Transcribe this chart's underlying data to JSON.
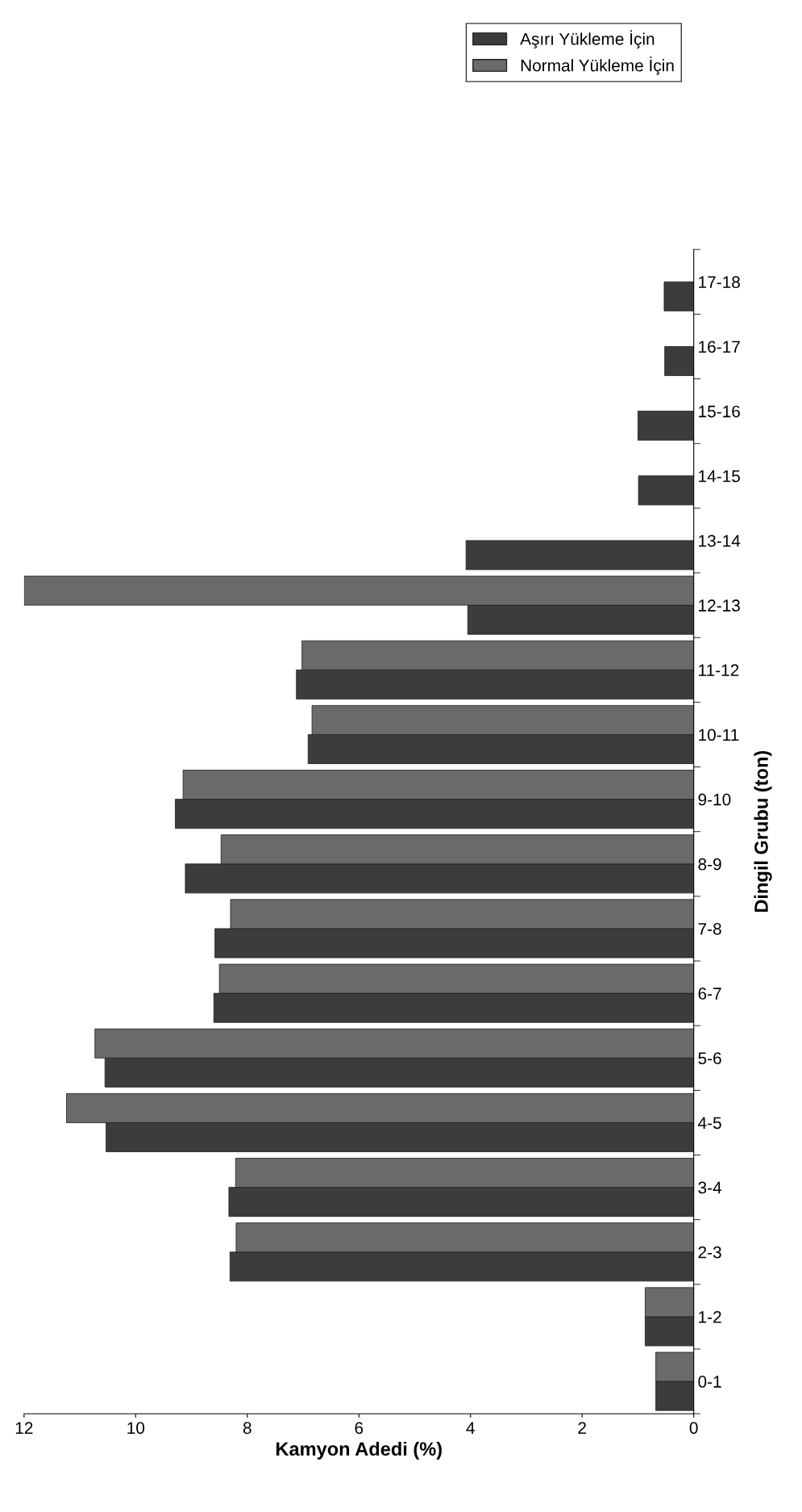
{
  "chart_data": {
    "type": "bar",
    "orientation": "horizontal",
    "xlabel": "Kamyon Adedi (%)",
    "ylabel": "Dingil Grubu (ton)",
    "categories": [
      "17-18",
      "16-17",
      "15-16",
      "14-15",
      "13-14",
      "12-13",
      "11-12",
      "10-11",
      "9-10",
      "8-9",
      "7-8",
      "6-7",
      "5-6",
      "4-5",
      "3-4",
      "2-3",
      "1-2",
      "0-1"
    ],
    "series": [
      {
        "name": "Aşırı Yükleme İçin",
        "color": "#3c3c3c",
        "values": [
          0.53,
          0.52,
          1.0,
          0.99,
          4.08,
          4.05,
          7.12,
          6.91,
          9.29,
          9.11,
          8.58,
          8.6,
          10.55,
          10.53,
          8.33,
          8.31,
          0.87,
          0.68
        ]
      },
      {
        "name": "Normal Yükleme İçin",
        "color": "#6a6a6a",
        "values": [
          null,
          null,
          null,
          null,
          null,
          12.0,
          7.02,
          6.84,
          9.15,
          8.47,
          8.3,
          8.5,
          10.73,
          11.24,
          8.21,
          8.2,
          0.87,
          0.68
        ]
      }
    ],
    "xlim": [
      12,
      0
    ],
    "xticks": [
      0,
      2,
      4,
      6,
      8,
      10,
      12
    ],
    "grid": false,
    "legend": "top right"
  }
}
